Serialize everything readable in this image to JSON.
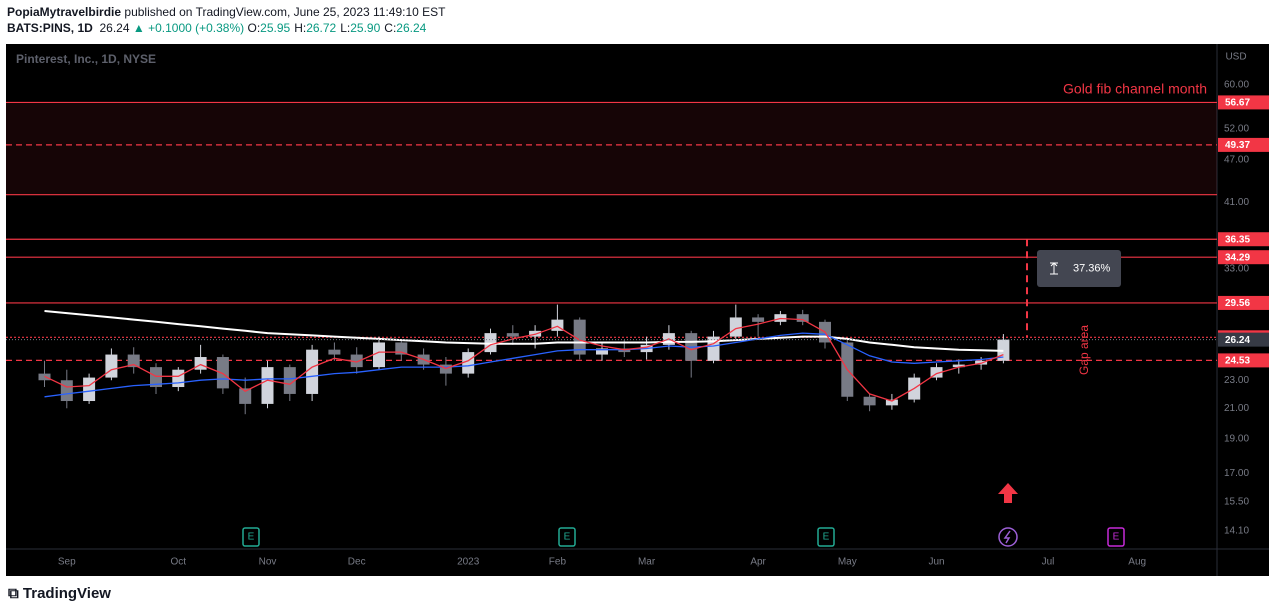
{
  "header": {
    "author": "PopiaMytravelbirdie",
    "published": "published on TradingView.com, June 25, 2023 11:49:10 EST",
    "symbol": "BATS:PINS, 1D",
    "price": "26.24",
    "arrow": "▲",
    "change": "+0.1000 (+0.38%)",
    "ohlc": [
      {
        "key": "O:",
        "value": "25.95"
      },
      {
        "key": "H:",
        "value": "26.72"
      },
      {
        "key": "L:",
        "value": "25.90"
      },
      {
        "key": "C:",
        "value": "26.24"
      }
    ]
  },
  "chart_data": {
    "type": "candlestick",
    "legend_title": "Pinterest, Inc., 1D, NYSE",
    "currency": "USD",
    "categories": [
      null,
      "Sep",
      null,
      null,
      null,
      null,
      "Oct",
      null,
      null,
      null,
      "Nov",
      null,
      null,
      null,
      "Dec",
      null,
      null,
      null,
      null,
      "2023",
      null,
      null,
      null,
      "Feb",
      null,
      null,
      null,
      "Mar",
      null,
      null,
      null,
      null,
      "Apr",
      null,
      null,
      null,
      "May",
      null,
      null,
      null,
      "Jun",
      null,
      null,
      null,
      null,
      "Jul",
      null,
      null,
      null,
      "Aug",
      null
    ],
    "open": [
      23.5,
      23.0,
      21.5,
      23.2,
      25.0,
      24.0,
      22.5,
      23.8,
      24.8,
      22.4,
      21.3,
      24.0,
      22.0,
      25.4,
      25.0,
      24.0,
      26.0,
      25.0,
      24.2,
      23.5,
      25.2,
      26.8,
      26.5,
      27.0,
      28.0,
      25.0,
      25.5,
      25.2,
      25.8,
      26.8,
      24.5,
      26.5,
      28.2,
      27.8,
      28.5,
      27.8,
      26.0,
      21.8,
      21.2,
      21.6,
      23.2,
      24.0,
      24.2,
      24.5,
      null,
      null,
      null,
      null,
      null,
      null,
      null
    ],
    "high": [
      24.5,
      23.8,
      23.5,
      25.5,
      25.6,
      24.3,
      24.0,
      25.8,
      25.0,
      23.2,
      24.5,
      24.2,
      25.8,
      26.0,
      25.6,
      26.5,
      26.2,
      25.5,
      24.8,
      25.5,
      27.2,
      27.5,
      27.5,
      29.4,
      28.2,
      26.0,
      26.2,
      26.5,
      27.5,
      27.0,
      27.0,
      29.4,
      28.5,
      28.8,
      28.9,
      28.0,
      26.3,
      22.0,
      22.0,
      23.5,
      24.3,
      24.6,
      24.8,
      26.72,
      null,
      null,
      null,
      null,
      null,
      null,
      null
    ],
    "low": [
      22.5,
      21.0,
      21.3,
      23.0,
      23.5,
      22.0,
      22.2,
      23.5,
      22.0,
      20.6,
      21.0,
      21.5,
      21.5,
      24.5,
      23.5,
      23.8,
      24.5,
      23.8,
      22.6,
      23.2,
      25.0,
      25.8,
      25.5,
      26.5,
      24.6,
      24.5,
      24.8,
      24.6,
      25.4,
      23.2,
      24.3,
      26.3,
      26.5,
      27.5,
      27.5,
      25.5,
      21.5,
      20.8,
      20.9,
      21.4,
      23.0,
      23.5,
      23.8,
      24.3,
      null,
      null,
      null,
      null,
      null,
      null,
      null
    ],
    "close": [
      23.0,
      21.5,
      23.2,
      25.0,
      24.0,
      22.5,
      23.8,
      24.8,
      22.4,
      21.3,
      24.0,
      22.0,
      25.4,
      25.0,
      24.0,
      26.0,
      25.0,
      24.2,
      23.5,
      25.2,
      26.8,
      26.5,
      27.0,
      28.0,
      25.0,
      25.5,
      25.2,
      25.8,
      26.8,
      24.5,
      26.5,
      28.2,
      27.8,
      28.5,
      27.8,
      26.0,
      21.8,
      21.2,
      21.6,
      23.2,
      24.0,
      24.2,
      24.5,
      26.24,
      null,
      null,
      null,
      null,
      null,
      null,
      null
    ],
    "up_color": "#d1d4dc",
    "down_color": "#787b86",
    "moving_averages": [
      {
        "color": "#ffffff",
        "values": [
          28.8,
          28.6,
          28.4,
          28.2,
          28.0,
          27.8,
          27.6,
          27.4,
          27.2,
          27.0,
          26.8,
          26.7,
          26.6,
          26.5,
          26.4,
          26.3,
          26.2,
          26.1,
          26.0,
          25.95,
          25.9,
          25.9,
          25.9,
          26.0,
          26.0,
          26.0,
          26.0,
          26.0,
          26.05,
          26.05,
          26.1,
          26.2,
          26.3,
          26.4,
          26.5,
          26.5,
          26.3,
          26.0,
          25.8,
          25.6,
          25.5,
          25.4,
          25.35,
          25.3,
          null,
          null,
          null,
          null,
          null,
          null,
          null
        ]
      },
      {
        "color": "#2962ff",
        "values": [
          21.8,
          22.0,
          22.2,
          22.4,
          22.6,
          22.7,
          22.8,
          23.0,
          23.1,
          23.0,
          23.1,
          23.1,
          23.3,
          23.5,
          23.6,
          23.8,
          24.0,
          24.0,
          24.0,
          24.1,
          24.4,
          24.7,
          25.0,
          25.3,
          25.4,
          25.4,
          25.4,
          25.5,
          25.7,
          25.6,
          25.7,
          26.0,
          26.3,
          26.6,
          26.8,
          26.7,
          25.8,
          24.9,
          24.4,
          24.3,
          24.4,
          24.5,
          24.6,
          24.8,
          null,
          null,
          null,
          null,
          null,
          null,
          null
        ]
      },
      {
        "color": "#f23645",
        "values": [
          23.3,
          22.5,
          22.6,
          23.8,
          24.2,
          23.3,
          23.3,
          24.2,
          23.5,
          22.2,
          23.0,
          22.7,
          24.0,
          24.7,
          24.4,
          25.2,
          25.2,
          24.6,
          23.9,
          24.5,
          25.8,
          26.3,
          26.7,
          27.4,
          26.2,
          25.7,
          25.4,
          25.6,
          26.3,
          25.4,
          25.9,
          27.2,
          27.6,
          28.1,
          28.0,
          26.9,
          23.8,
          22.0,
          21.5,
          22.4,
          23.5,
          24.0,
          24.3,
          25.0,
          null,
          null,
          null,
          null,
          null,
          null,
          null
        ]
      }
    ],
    "log_scale": true,
    "ylim": [
      13.3,
      68.5
    ],
    "yticks": [
      {
        "value": 60,
        "label": "60.00"
      },
      {
        "value": 52,
        "label": "52.00"
      },
      {
        "value": 47,
        "label": "47.00"
      },
      {
        "value": 41,
        "label": "41.00"
      },
      {
        "value": 33,
        "label": "33.00"
      },
      {
        "value": 23,
        "label": "23.00"
      },
      {
        "value": 21,
        "label": "21.00"
      },
      {
        "value": 19,
        "label": "19.00"
      },
      {
        "value": 17,
        "label": "17.00"
      },
      {
        "value": 15.5,
        "label": "15.50"
      },
      {
        "value": 14.1,
        "label": "14.10"
      }
    ],
    "zone": [
      42.0,
      56.67
    ],
    "zone_color": "#f23645",
    "levels": [
      {
        "value": 56.67,
        "style": "solid",
        "label": true
      },
      {
        "value": 49.37,
        "style": "dashed",
        "label": true
      },
      {
        "value": 42.0,
        "style": "solid",
        "label": false
      },
      {
        "value": 36.35,
        "style": "solid",
        "label": true
      },
      {
        "value": 34.29,
        "style": "solid",
        "label": true
      },
      {
        "value": 29.56,
        "style": "solid",
        "label": true
      },
      {
        "value": 26.44,
        "style": "dotted",
        "label": true
      },
      {
        "value": 24.53,
        "style": "dashed",
        "label": true
      }
    ],
    "level_color": "#f23645",
    "last_price": 26.24,
    "annotations": {
      "title": "Gold fib channel month",
      "gap": "Gap area",
      "measure": {
        "from": 26.46,
        "to": 36.35,
        "label": "37.36%"
      }
    }
  },
  "footer": {
    "brand": "TradingView"
  }
}
